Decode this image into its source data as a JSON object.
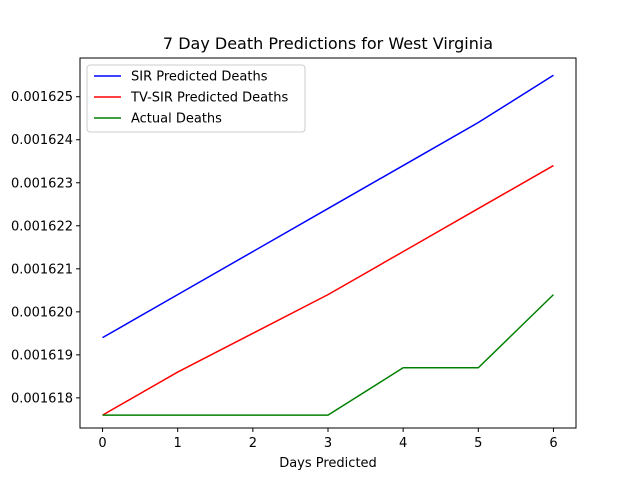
{
  "chart_data": {
    "type": "line",
    "title": "7 Day Death Predictions for West Virginia",
    "xlabel": "Days Predicted",
    "ylabel": "",
    "x": [
      0,
      1,
      2,
      3,
      4,
      5,
      6
    ],
    "xticks": [
      "0",
      "1",
      "2",
      "3",
      "4",
      "5",
      "6"
    ],
    "yticks": [
      0.001618,
      0.001619,
      0.00162,
      0.001621,
      0.001622,
      0.001623,
      0.001624,
      0.001625
    ],
    "ytick_labels": [
      "0.001618",
      "0.001619",
      "0.001620",
      "0.001621",
      "0.001622",
      "0.001623",
      "0.001624",
      "0.001625"
    ],
    "xlim": [
      -0.3,
      6.3
    ],
    "ylim": [
      0.0016173,
      0.0016259
    ],
    "grid": false,
    "legend_position": "top-left",
    "series": [
      {
        "name": "SIR Predicted Deaths",
        "color": "#0000ff",
        "values": [
          0.0016194,
          0.0016204,
          0.0016214,
          0.0016224,
          0.0016234,
          0.0016244,
          0.0016255
        ]
      },
      {
        "name": "TV-SIR Predicted Deaths",
        "color": "#ff0000",
        "values": [
          0.0016176,
          0.0016186,
          0.0016195,
          0.0016204,
          0.0016214,
          0.0016224,
          0.0016234
        ]
      },
      {
        "name": "Actual Deaths",
        "color": "#008000",
        "values": [
          0.0016176,
          0.0016176,
          0.0016176,
          0.0016176,
          0.0016187,
          0.0016187,
          0.0016204
        ]
      }
    ]
  }
}
